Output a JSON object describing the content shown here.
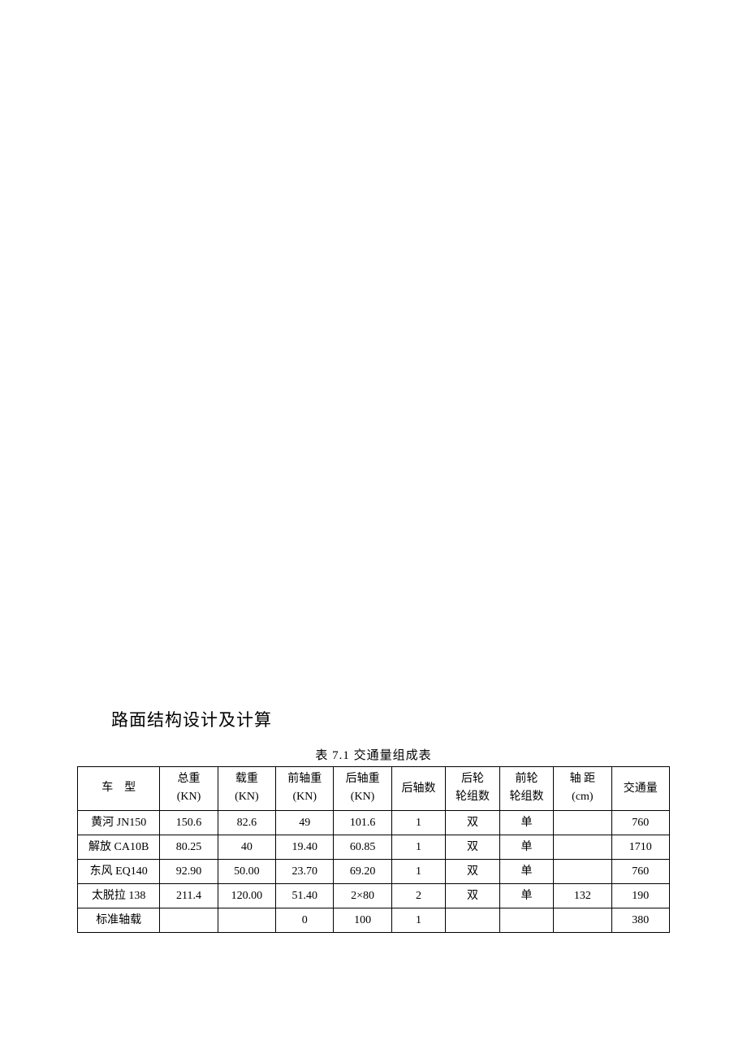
{
  "heading": "路面结构设计及计算",
  "table": {
    "caption": "表 7.1 交通量组成表",
    "border_color": "#000000",
    "background_color": "#ffffff",
    "text_color": "#000000",
    "font_size": 14,
    "caption_font_size": 15,
    "heading_font_size": 21,
    "columns": [
      {
        "line1": "车　型",
        "line2": ""
      },
      {
        "line1": "总重",
        "line2": "(KN)"
      },
      {
        "line1": "载重",
        "line2": "(KN)"
      },
      {
        "line1": "前轴重",
        "line2": "(KN)"
      },
      {
        "line1": "后轴重",
        "line2": "(KN)"
      },
      {
        "line1": "后轴数",
        "line2": ""
      },
      {
        "line1": "后轮",
        "line2": "轮组数"
      },
      {
        "line1": "前轮",
        "line2": "轮组数"
      },
      {
        "line1": "轴 距",
        "line2": "(cm)"
      },
      {
        "line1": "交通量",
        "line2": ""
      }
    ],
    "rows": [
      [
        "黄河 JN150",
        "150.6",
        "82.6",
        "49",
        "101.6",
        "1",
        "双",
        "单",
        "",
        "760"
      ],
      [
        "解放 CA10B",
        "80.25",
        "40",
        "19.40",
        "60.85",
        "1",
        "双",
        "单",
        "",
        "1710"
      ],
      [
        "东风 EQ140",
        "92.90",
        "50.00",
        "23.70",
        "69.20",
        "1",
        "双",
        "单",
        "",
        "760"
      ],
      [
        "太脱拉 138",
        "211.4",
        "120.00",
        "51.40",
        "2×80",
        "2",
        "双",
        "单",
        "132",
        "190"
      ],
      [
        "标准轴载",
        "",
        "",
        "0",
        "100",
        "1",
        "",
        "",
        "",
        "380"
      ]
    ]
  }
}
